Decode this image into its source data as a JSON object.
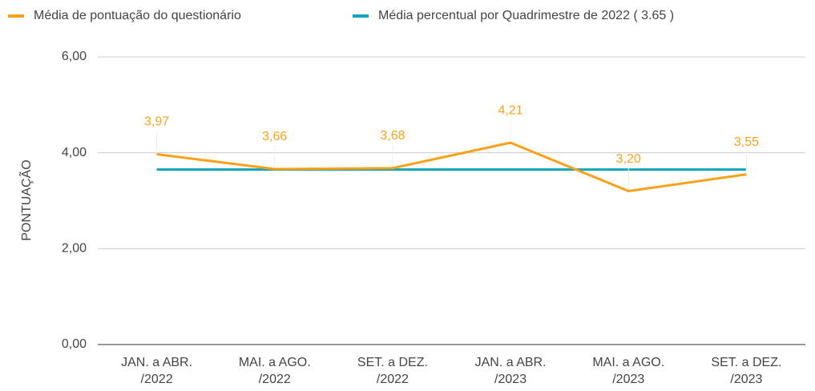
{
  "chart_data": {
    "type": "line",
    "y_label": "PONTUAÇÃO",
    "categories": [
      "JAN. a ABR.\n/2022",
      "MAI. a AGO.\n/2022",
      "SET. a DEZ.\n/2022",
      "JAN. a ABR.\n/2023",
      "MAI. a AGO.\n/2023",
      "SET. a DEZ.\n/2023"
    ],
    "series": [
      {
        "name": "Média de pontuação do questionário",
        "color": "#f9a11b",
        "values": [
          3.97,
          3.66,
          3.68,
          4.21,
          3.2,
          3.55
        ],
        "value_labels": [
          "3,97",
          "3,66",
          "3,68",
          "4,21",
          "3,20",
          "3,55"
        ]
      },
      {
        "name": "Média percentual por Quadrimestre de 2022 ( 3.65 )",
        "color": "#12a4b8",
        "values": [
          3.65,
          3.65,
          3.65,
          3.65,
          3.65,
          3.65
        ]
      }
    ],
    "ylim": [
      0,
      6
    ],
    "yticks": [
      {
        "value": 0,
        "label": "0,00"
      },
      {
        "value": 2,
        "label": "2,00"
      },
      {
        "value": 4,
        "label": "4,00"
      },
      {
        "value": 6,
        "label": "6,00"
      }
    ],
    "grid": true,
    "legend": "top"
  }
}
